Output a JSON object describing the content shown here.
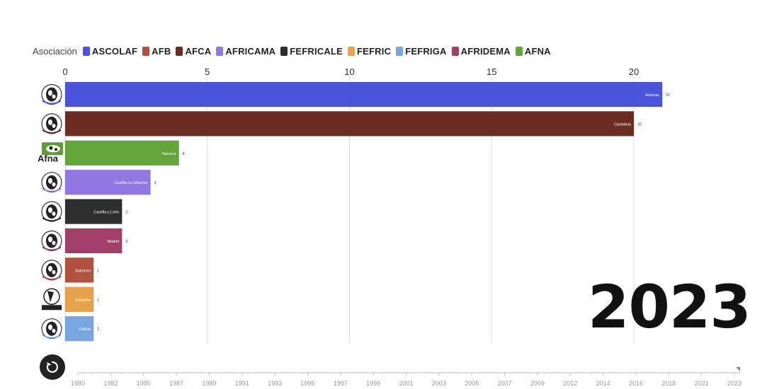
{
  "legend": {
    "title": "Asociación",
    "items": [
      {
        "label": "ASCOLAF",
        "color": "#4a54dc"
      },
      {
        "label": "AFB",
        "color": "#b1513f"
      },
      {
        "label": "AFCA",
        "color": "#6b2c22"
      },
      {
        "label": "AFRICAMA",
        "color": "#9178e2"
      },
      {
        "label": "FEFRICALE",
        "color": "#2e2e2e"
      },
      {
        "label": "FEFRIC",
        "color": "#e8a24c"
      },
      {
        "label": "FEFRIGA",
        "color": "#76a7e3"
      },
      {
        "label": "AFRIDEMA",
        "color": "#a3406a"
      },
      {
        "label": "AFNA",
        "color": "#62a53b"
      }
    ]
  },
  "chart_data": {
    "type": "bar",
    "orientation": "horizontal",
    "year": "2023",
    "xlim": [
      0,
      21
    ],
    "xticks": [
      0,
      5,
      10,
      15,
      20
    ],
    "grid": true,
    "legend_placement": "top",
    "bars": [
      {
        "association": "ASCOLAF",
        "region": "Asturias",
        "value": 21,
        "color": "#4a54dc",
        "logo_icon": "cow-logo-icon"
      },
      {
        "association": "AFCA",
        "region": "Cantabria",
        "value": 20,
        "color": "#6b2c22",
        "logo_icon": "cow-logo-icon"
      },
      {
        "association": "AFNA",
        "region": "Navarra",
        "value": 4,
        "color": "#62a53b",
        "logo_icon": "afna-logo-icon"
      },
      {
        "association": "AFRICAMA",
        "region": "Castilla-La Mancha",
        "value": 3,
        "color": "#9178e2",
        "logo_icon": "cow-logo-icon"
      },
      {
        "association": "FEFRICALE",
        "region": "Castilla y León",
        "value": 2,
        "color": "#2e2e2e",
        "logo_icon": "cow-logo-icon"
      },
      {
        "association": "AFRIDEMA",
        "region": "Madrid",
        "value": 2,
        "color": "#a3406a",
        "logo_icon": "cow-logo-icon"
      },
      {
        "association": "AFB",
        "region": "Baleares",
        "value": 1,
        "color": "#b1513f",
        "logo_icon": "cow-logo-icon"
      },
      {
        "association": "FEFRIC",
        "region": "Cataluña",
        "value": 1,
        "color": "#e8a24c",
        "logo_icon": "fefric-logo-icon"
      },
      {
        "association": "FEFRIGA",
        "region": "Galicia",
        "value": 1,
        "color": "#76a7e3",
        "logo_icon": "cow-logo-icon"
      }
    ],
    "timeline": {
      "labels": [
        "1980",
        "1982",
        "1985",
        "1987",
        "1989",
        "1991",
        "1993",
        "1995",
        "1997",
        "1999",
        "2001",
        "2003",
        "2005",
        "2007",
        "2009",
        "2012",
        "2014",
        "2016",
        "2018",
        "2021",
        "2023"
      ],
      "current": "2023"
    }
  },
  "controls": {
    "replay_icon": "replay-icon"
  }
}
